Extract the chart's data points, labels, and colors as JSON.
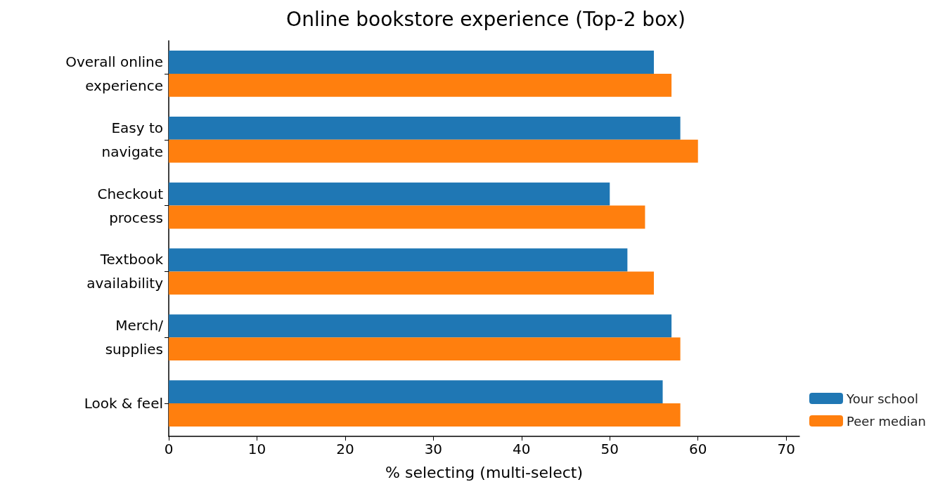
{
  "chart_data": {
    "type": "bar",
    "orientation": "horizontal",
    "title": "Online bookstore experience (Top-2 box)",
    "xlabel": "% selecting (multi-select)",
    "categories": [
      "Overall online\nexperience",
      "Easy to\nnavigate",
      "Checkout\nprocess",
      "Textbook\navailability",
      "Merch/\nsupplies",
      "Look & feel"
    ],
    "series": [
      {
        "name": "Your school",
        "color": "#1f77b4",
        "values": [
          55,
          58,
          50,
          52,
          57,
          56
        ]
      },
      {
        "name": "Peer median",
        "color": "#ff7f0e",
        "values": [
          57,
          60,
          54,
          55,
          58,
          58
        ]
      }
    ],
    "xlim": [
      0,
      71.5
    ],
    "xticks": [
      0,
      10,
      20,
      30,
      40,
      50,
      60,
      70
    ],
    "grid": false,
    "legend": "bottom right"
  }
}
